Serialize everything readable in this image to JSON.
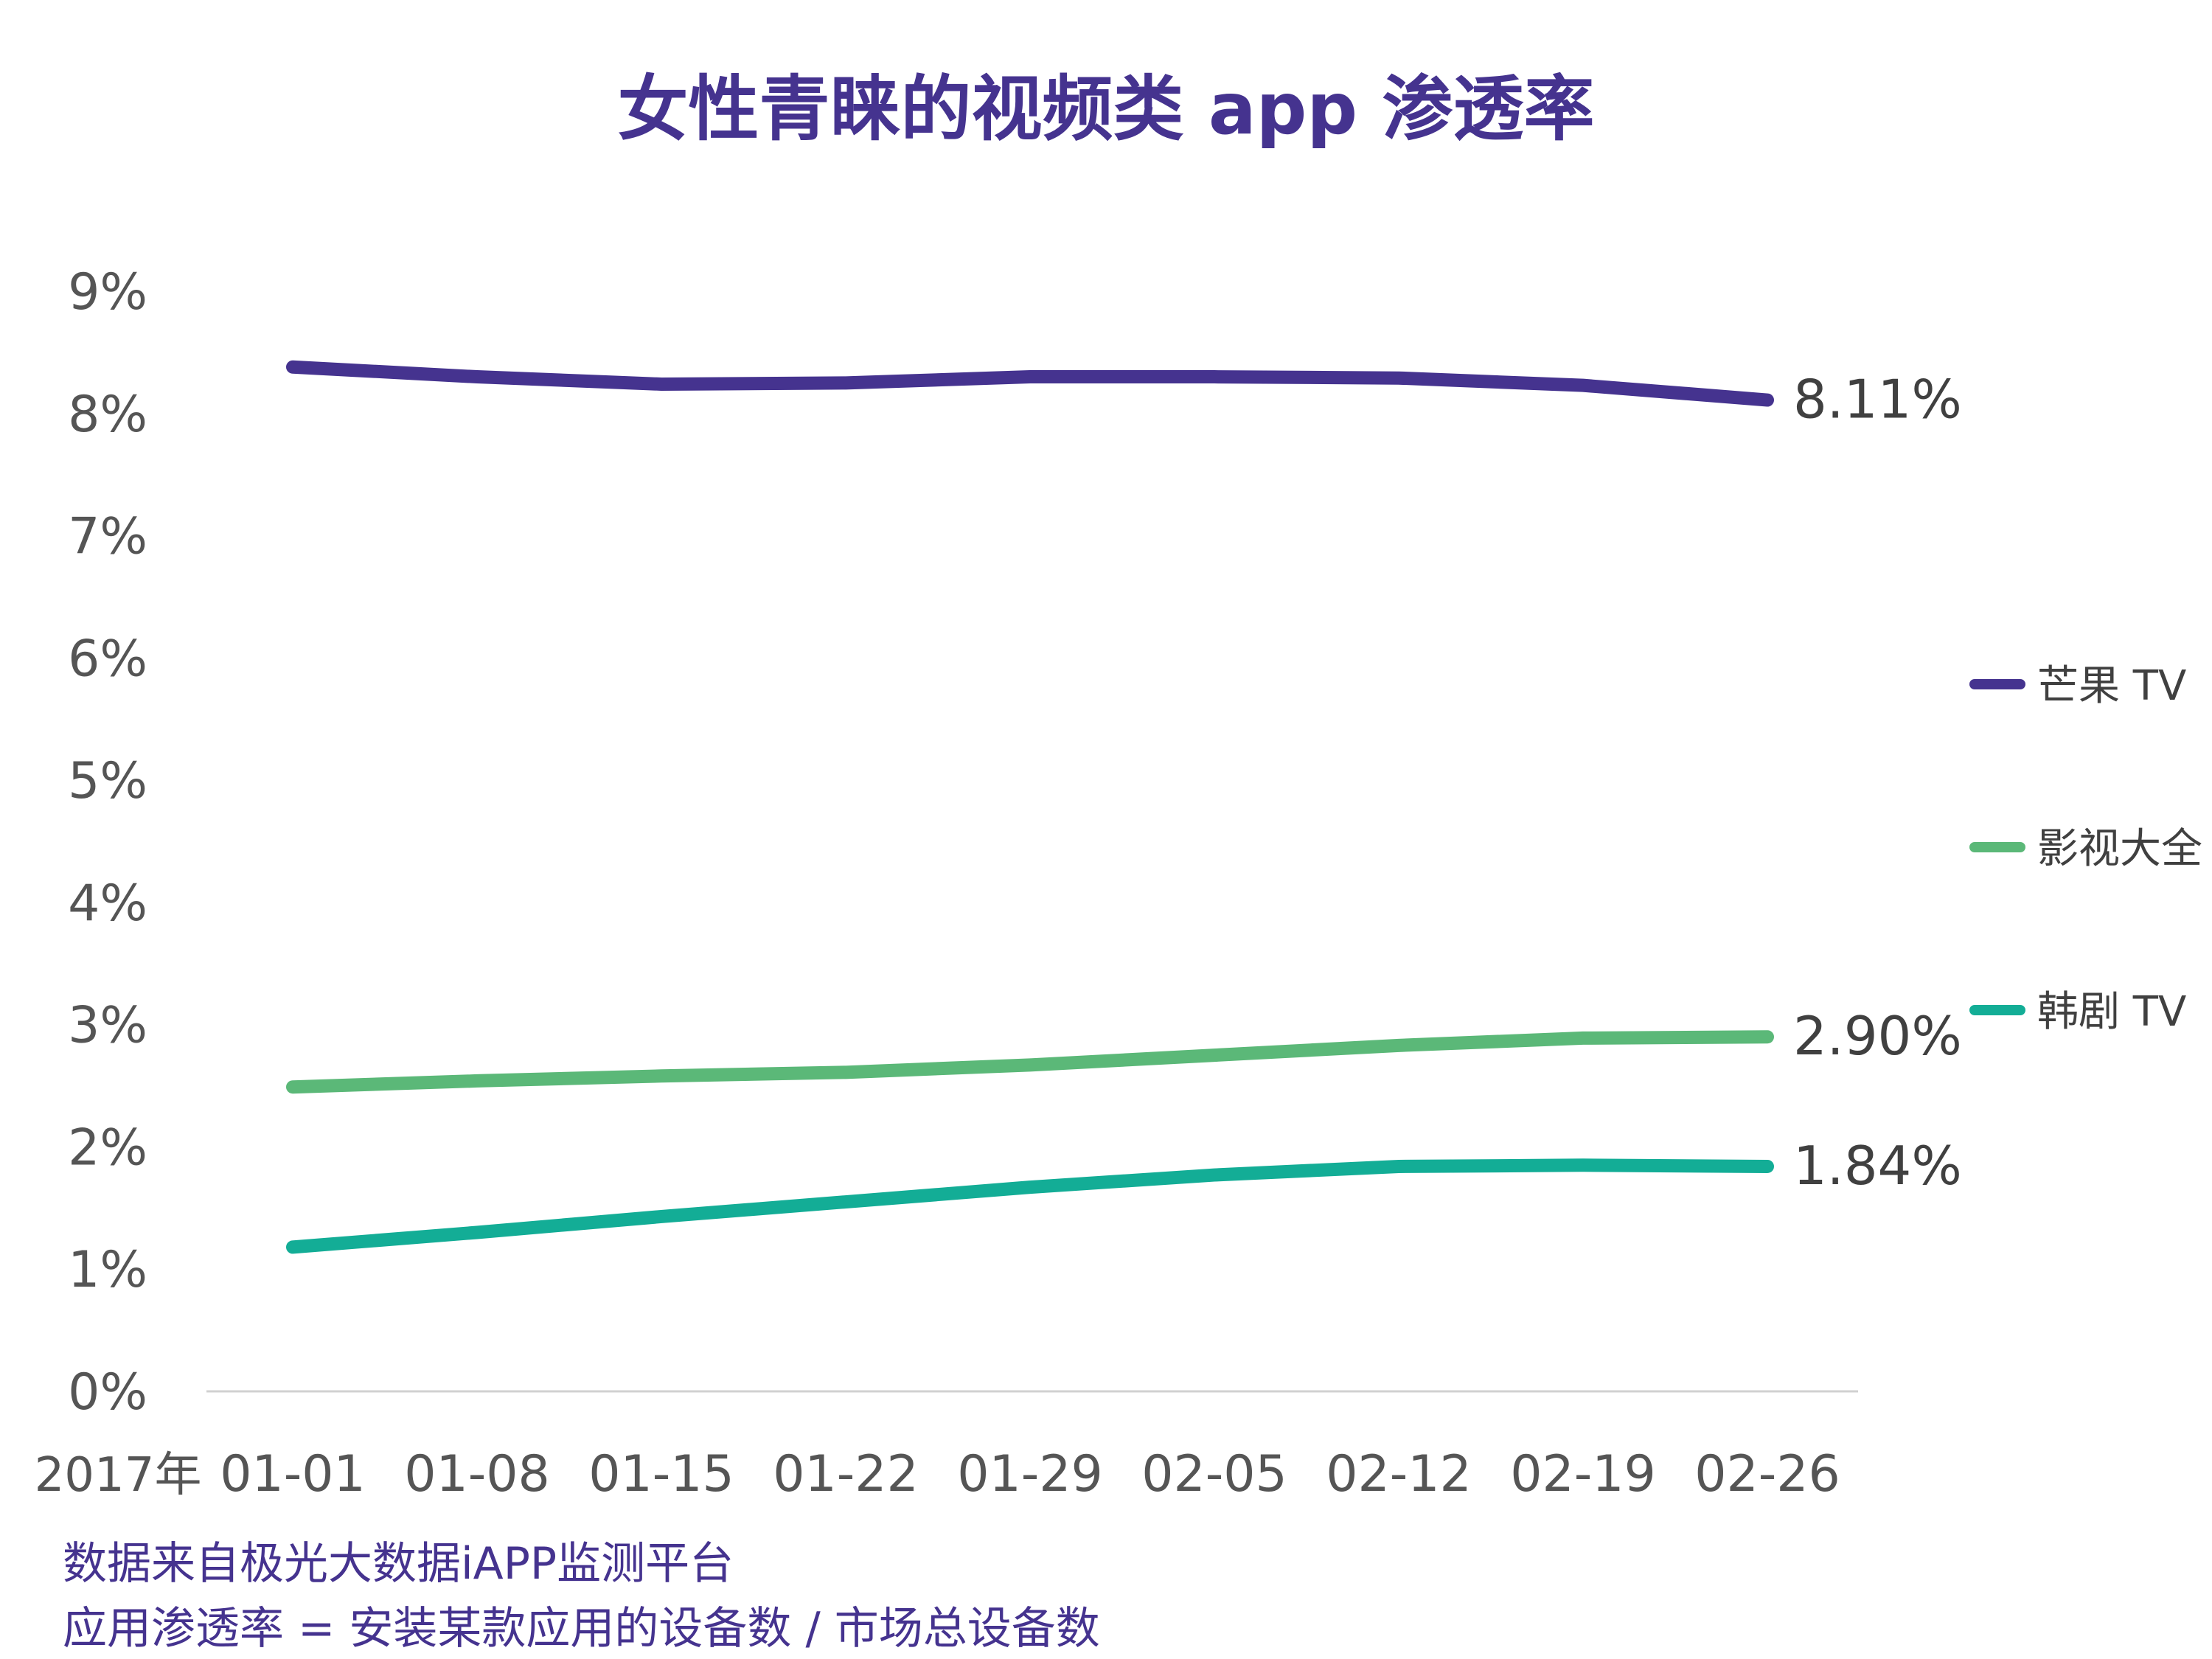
{
  "chart_data": {
    "type": "line",
    "title": "女性青睐的视频类 app 渗透率",
    "x_prefix": "2017年",
    "categories": [
      "01-01",
      "01-08",
      "01-15",
      "01-22",
      "01-29",
      "02-05",
      "02-12",
      "02-19",
      "02-26"
    ],
    "y_unit": "%",
    "ylim": [
      0,
      9
    ],
    "y_ticks": [
      "0%",
      "1%",
      "2%",
      "3%",
      "4%",
      "5%",
      "6%",
      "7%",
      "8%",
      "9%"
    ],
    "grid": false,
    "legend_position": "right",
    "series": [
      {
        "name": "芒果 TV",
        "color": "#45338f",
        "values": [
          8.38,
          8.3,
          8.24,
          8.25,
          8.3,
          8.3,
          8.29,
          8.23,
          8.11
        ],
        "end_label": "8.11%"
      },
      {
        "name": "影视大全",
        "color": "#5bb878",
        "values": [
          2.49,
          2.54,
          2.58,
          2.61,
          2.67,
          2.75,
          2.83,
          2.89,
          2.9
        ],
        "end_label": "2.90%"
      },
      {
        "name": "韩剧 TV",
        "color": "#13ad96",
        "values": [
          1.18,
          1.3,
          1.43,
          1.55,
          1.67,
          1.77,
          1.84,
          1.85,
          1.84
        ],
        "end_label": "1.84%"
      }
    ]
  },
  "footnotes": [
    "数据来自极光大数据iAPP监测平台",
    "应用渗透率 = 安装某款应用的设备数 / 市场总设备数"
  ]
}
